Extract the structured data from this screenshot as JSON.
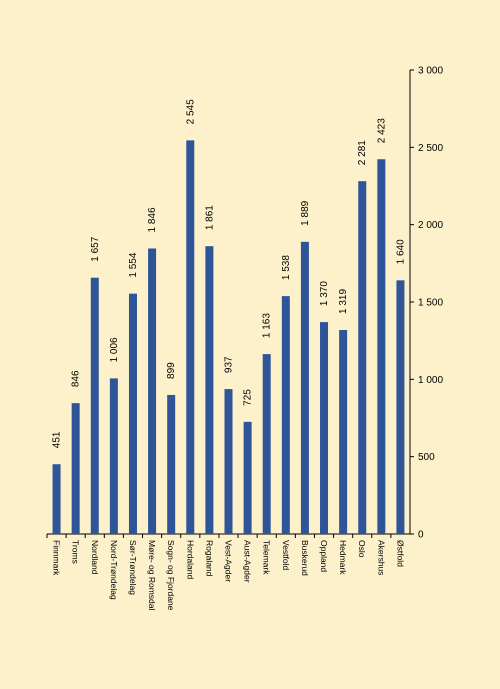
{
  "chart_data": {
    "type": "bar",
    "orientation": "vertical",
    "text_rotation": "90deg",
    "y_axis_side": "right",
    "title": "",
    "xlabel": "",
    "ylabel": "",
    "ylim": [
      0,
      3000
    ],
    "yticks": [
      0,
      500,
      1000,
      1500,
      2000,
      2500,
      3000
    ],
    "ytick_labels": [
      "0",
      "500",
      "1 000",
      "1 500",
      "2 000",
      "2 500",
      "3 000"
    ],
    "grid": false,
    "legend": "none",
    "bar_color": "#2e5597",
    "plot_background": "#fcf1cb",
    "categories": [
      "Finnmark",
      "Troms",
      "Nordland",
      "Nord-Trøndelag",
      "Sør-Trøndelag",
      "Møre- og Romsdal",
      "Sogn- og Fjordane",
      "Hordaland",
      "Rogaland",
      "Vest-Agder",
      "Aust-Agder",
      "Telemark",
      "Vestfold",
      "Buskerud",
      "Oppland",
      "Hedmark",
      "Oslo",
      "Akershus",
      "Østfold"
    ],
    "values": [
      451,
      846,
      1657,
      1006,
      1554,
      1846,
      899,
      2545,
      1861,
      937,
      725,
      1163,
      1538,
      1889,
      1370,
      1319,
      2281,
      2423,
      1640
    ],
    "value_labels": [
      "451",
      "846",
      "1 657",
      "1 006",
      "1 554",
      "1 846",
      "899",
      "2 545",
      "1 861",
      "937",
      "725",
      "1 163",
      "1 538",
      "1 889",
      "1 370",
      "1 319",
      "2 281",
      "2 423",
      "1 640"
    ]
  }
}
